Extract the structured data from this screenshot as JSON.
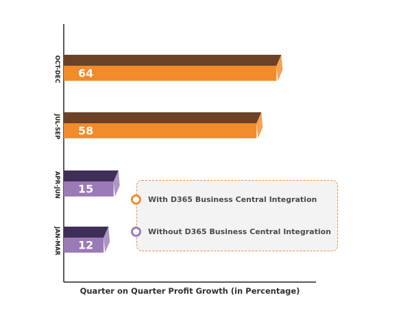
{
  "chart_data": {
    "type": "bar",
    "orientation": "horizontal",
    "categories": [
      "OCT-DEC",
      "JUL-SEP",
      "APR-JUN",
      "JAN-MAR"
    ],
    "values": [
      64,
      58,
      15,
      12
    ],
    "series": [
      {
        "name": "With D365 Business Central Integration",
        "categories": [
          "OCT-DEC",
          "JUL-SEP"
        ],
        "color": "#f28b2a",
        "top_color": "#6b4226"
      },
      {
        "name": "Without D365 Business Central Integration",
        "categories": [
          "APR-JUN",
          "JAN-MAR"
        ],
        "color": "#9b7ab8",
        "top_color": "#3f2f58"
      }
    ],
    "xlabel": "Quarter on Quarter Profit Growth (in Percentage)",
    "ylabel": "",
    "xlim": [
      0,
      68
    ],
    "grid": false,
    "legend_placement": "bottom-right"
  },
  "legend": {
    "items": [
      {
        "label": "With D365 Business Central Integration",
        "color": "#f28b2a"
      },
      {
        "label": "Without D365 Business Central Integration",
        "color": "#9b7ab8"
      }
    ]
  }
}
